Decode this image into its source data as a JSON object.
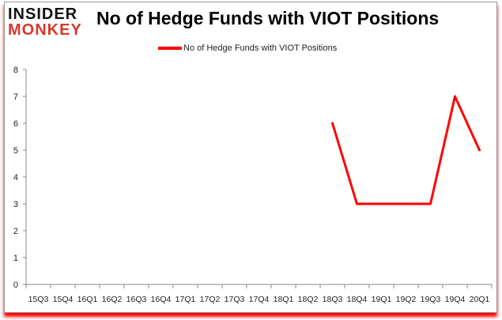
{
  "logo": {
    "line1": "INSIDER",
    "line2": "MONKEY"
  },
  "chart_data": {
    "type": "line",
    "title": "No of Hedge Funds with VIOT Positions",
    "categories": [
      "15Q3",
      "15Q4",
      "16Q1",
      "16Q2",
      "16Q3",
      "16Q4",
      "17Q1",
      "17Q2",
      "17Q3",
      "17Q4",
      "18Q1",
      "18Q2",
      "18Q3",
      "18Q4",
      "19Q1",
      "19Q2",
      "19Q3",
      "19Q4",
      "20Q1"
    ],
    "series": [
      {
        "name": "No of Hedge Funds with VIOT Positions",
        "color": "#ff0000",
        "values": [
          null,
          null,
          null,
          null,
          null,
          null,
          null,
          null,
          null,
          null,
          null,
          null,
          6,
          3,
          3,
          3,
          3,
          7,
          5
        ]
      }
    ],
    "ylim": [
      0,
      8
    ],
    "yticks": [
      "0",
      "1",
      "2",
      "3",
      "4",
      "5",
      "6",
      "7",
      "8"
    ],
    "grid": false,
    "legend": "top-center"
  }
}
